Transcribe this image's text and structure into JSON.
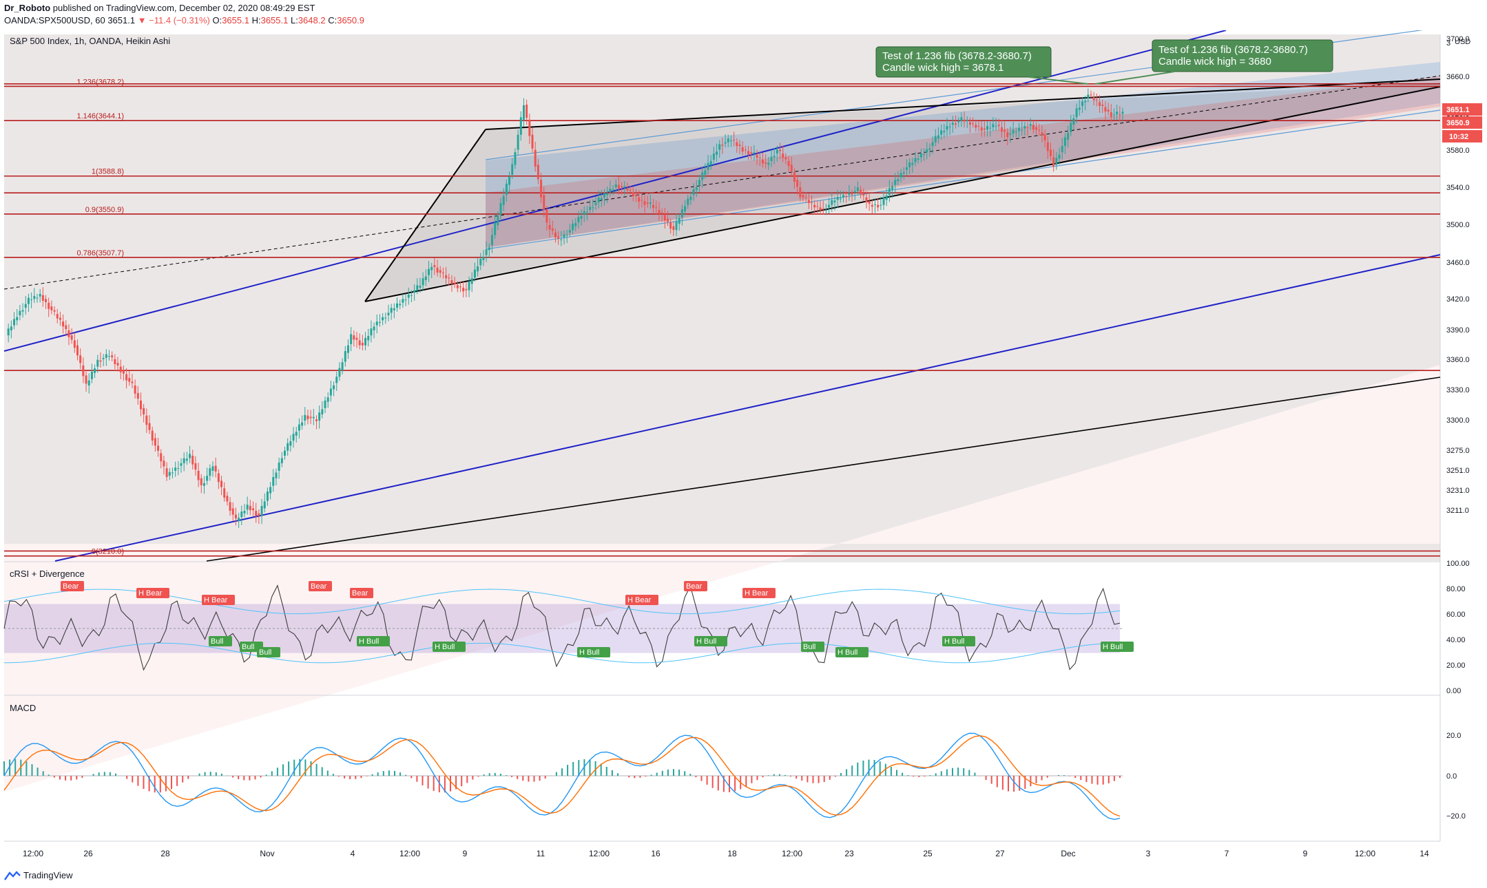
{
  "header": {
    "author": "Dr_Roboto",
    "published_text": "published on TradingView.com, December 02, 2020 08:49:29 EST",
    "symbol_line_prefix": "OANDA:SPX500USD, 60",
    "last_price": "3651.1",
    "change_text": "▼ −11.4 (−0.31%)",
    "o_label": "O:",
    "o_value": "3655.1",
    "h_label": "H:",
    "h_value": "3655.1",
    "l_label": "L:",
    "l_value": "3648.2",
    "c_label": "C:",
    "c_value": "3650.9"
  },
  "main_pane": {
    "legend": "S&P 500 Index, 1h, OANDA, Heikin Ashi",
    "currency": "USD",
    "price_axis": [
      "3700.0",
      "3660.0",
      "3620.0",
      "3580.0",
      "3540.0",
      "3500.0",
      "3460.0",
      "3420.0",
      "3390.0",
      "3360.0",
      "3330.0",
      "3300.0",
      "3275.0",
      "3251.0",
      "3231.0",
      "3211.0"
    ],
    "price_badges": {
      "last": "3651.1",
      "close": "3650.9",
      "timer": "10:32"
    },
    "fib_labels": [
      "1.236(3678.2)",
      "1.146(3644.1)",
      "1(3588.8)",
      "0.9(3550.9)",
      "0.786(3507.7)",
      "0(3210.0)"
    ],
    "callout_1": {
      "line1": "Test of 1.236 fib (3678.2-3680.7)",
      "line2": "Candle wick high = 3678.1"
    },
    "callout_2": {
      "line1": "Test of 1.236 fib (3678.2-3680.7)",
      "line2": "Candle wick high = 3680"
    },
    "top_axis_label": "3"
  },
  "crsi_pane": {
    "legend": "cRSI + Divergence",
    "axis": [
      "100.00",
      "80.00",
      "60.00",
      "40.00",
      "20.00",
      "0.00"
    ],
    "bear_labels": [
      "Bear",
      "H Bear",
      "H Bear",
      "Bear",
      "Bear",
      "H Bear",
      "Bear",
      "H Bear"
    ],
    "bull_labels": [
      "Bull",
      "Bull",
      "Bull",
      "H Bull",
      "H Bull",
      "H Bull",
      "H Bull",
      "Bull",
      "H Bull",
      "H Bull",
      "H Bull"
    ]
  },
  "macd_pane": {
    "legend": "MACD",
    "axis": [
      "20.0",
      "0.0",
      "−20.0"
    ]
  },
  "time_axis": [
    "12:00",
    "26",
    "28",
    "Nov",
    "4",
    "12:00",
    "9",
    "11",
    "12:00",
    "16",
    "18",
    "12:00",
    "23",
    "25",
    "27",
    "Dec",
    "3",
    "7",
    "9",
    "12:00",
    "14"
  ],
  "footer": {
    "brand": "TradingView"
  },
  "colors": {
    "up": "#26a69a",
    "down": "#ef5350",
    "fib": "#b71c1c",
    "channel": "#1e22c7",
    "black": "#000000"
  },
  "chart_data": [
    {
      "type": "candlestick",
      "title": "S&P 500 Index, 1h, OANDA, Heikin Ashi",
      "ylim": [
        3205,
        3730
      ],
      "fib_levels": [
        {
          "label": "1.236",
          "value": 3678.2
        },
        {
          "label": "1.146",
          "value": 3644.1
        },
        {
          "label": "1",
          "value": 3588.8
        },
        {
          "label": "0.9",
          "value": 3550.9
        },
        {
          "label": "0.786",
          "value": 3507.7
        },
        {
          "label": "0",
          "value": 3210.0
        }
      ],
      "extra_levels": [
        3680.7,
        3572,
        3395,
        3215
      ],
      "price_path": [
        3430,
        3450,
        3465,
        3470,
        3455,
        3440,
        3420,
        3380,
        3405,
        3410,
        3395,
        3380,
        3350,
        3320,
        3290,
        3300,
        3310,
        3280,
        3300,
        3270,
        3245,
        3260,
        3250,
        3280,
        3310,
        3330,
        3350,
        3345,
        3370,
        3395,
        3430,
        3420,
        3440,
        3450,
        3460,
        3470,
        3480,
        3500,
        3490,
        3480,
        3475,
        3500,
        3520,
        3560,
        3600,
        3660,
        3600,
        3540,
        3525,
        3535,
        3550,
        3560,
        3570,
        3580,
        3575,
        3565,
        3560,
        3550,
        3535,
        3560,
        3580,
        3600,
        3620,
        3625,
        3615,
        3610,
        3600,
        3615,
        3600,
        3570,
        3560,
        3555,
        3565,
        3570,
        3575,
        3560,
        3560,
        3580,
        3595,
        3605,
        3615,
        3630,
        3640,
        3645,
        3640,
        3635,
        3640,
        3630,
        3635,
        3640,
        3630,
        3600,
        3625,
        3655,
        3670,
        3660,
        3650,
        3651.1
      ]
    }
  ]
}
